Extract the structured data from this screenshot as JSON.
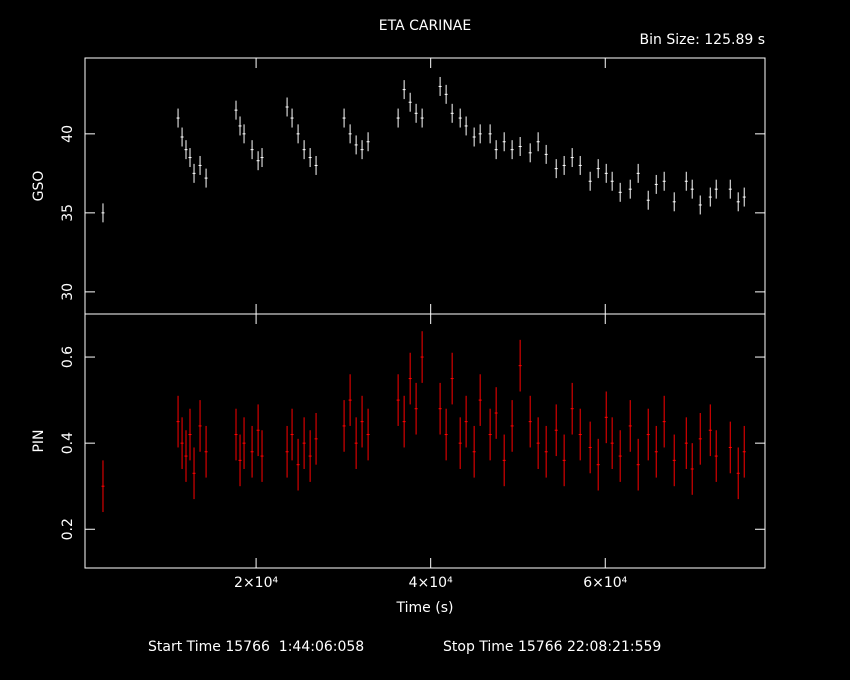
{
  "header": {
    "title": "ETA CARINAE",
    "bin_size": "Bin Size: 125.89 s"
  },
  "chart_data": [
    {
      "type": "errorbar",
      "ylabel": "GSO",
      "x": [
        2460,
        11060,
        11520,
        11970,
        12430,
        12890,
        13580,
        14270,
        17700,
        18160,
        18620,
        19540,
        20230,
        20680,
        23550,
        24120,
        24810,
        25500,
        26190,
        26870,
        30080,
        30770,
        31460,
        32140,
        32830,
        36270,
        36960,
        37650,
        38330,
        39020,
        41080,
        41770,
        42460,
        43380,
        44060,
        44980,
        45670,
        46810,
        47500,
        48420,
        49330,
        50250,
        51400,
        52310,
        53230,
        54380,
        55290,
        56210,
        57130,
        58270,
        59190,
        60110,
        60790,
        61710,
        62860,
        63770,
        64920,
        65840,
        66750,
        67900,
        69280,
        69960,
        70880,
        72030,
        72710,
        74320,
        75230,
        75920
      ],
      "series": [
        {
          "color": "#ffffff",
          "values": [
            35.0,
            41.0,
            39.8,
            39.0,
            38.5,
            37.5,
            38.0,
            37.2,
            41.5,
            40.5,
            40.0,
            39.0,
            38.3,
            38.5,
            41.7,
            41.0,
            40.0,
            39.0,
            38.5,
            38.0,
            41.0,
            40.0,
            39.3,
            39.0,
            39.5,
            41.0,
            42.8,
            42.0,
            41.3,
            41.0,
            43.0,
            42.5,
            41.3,
            41.0,
            40.5,
            39.8,
            40.0,
            40.0,
            39.0,
            39.5,
            39.0,
            39.2,
            38.8,
            39.5,
            38.7,
            37.8,
            38.0,
            38.5,
            38.0,
            37.0,
            37.8,
            37.5,
            37.0,
            36.3,
            36.5,
            37.5,
            35.8,
            36.8,
            37.0,
            35.7,
            37.0,
            36.5,
            35.5,
            36.0,
            36.5,
            36.5,
            35.7,
            36.0
          ]
        }
      ],
      "yerr": 0.6,
      "xlim": [
        400,
        78300
      ],
      "ylim": [
        28.6,
        44.8
      ],
      "yticks": [
        30,
        35,
        40
      ]
    },
    {
      "type": "errorbar",
      "ylabel": "PIN",
      "xlabel": "Time (s)",
      "x": [
        2460,
        11060,
        11520,
        11970,
        12430,
        12890,
        13580,
        14270,
        17700,
        18160,
        18620,
        19540,
        20230,
        20680,
        23550,
        24120,
        24810,
        25500,
        26190,
        26870,
        30080,
        30770,
        31460,
        32140,
        32830,
        36270,
        36960,
        37650,
        38330,
        39020,
        41080,
        41770,
        42460,
        43380,
        44060,
        44980,
        45670,
        46810,
        47500,
        48420,
        49330,
        50250,
        51400,
        52310,
        53230,
        54380,
        55290,
        56210,
        57130,
        58270,
        59190,
        60110,
        60790,
        61710,
        62860,
        63770,
        64920,
        65840,
        66750,
        67900,
        69280,
        69960,
        70880,
        72030,
        72710,
        74320,
        75230,
        75920
      ],
      "series": [
        {
          "color": "#ff0000",
          "values": [
            0.3,
            0.45,
            0.4,
            0.37,
            0.42,
            0.33,
            0.44,
            0.38,
            0.42,
            0.36,
            0.4,
            0.38,
            0.43,
            0.37,
            0.38,
            0.42,
            0.35,
            0.4,
            0.37,
            0.41,
            0.44,
            0.5,
            0.4,
            0.45,
            0.42,
            0.5,
            0.45,
            0.55,
            0.48,
            0.6,
            0.48,
            0.42,
            0.55,
            0.4,
            0.45,
            0.38,
            0.5,
            0.42,
            0.47,
            0.36,
            0.44,
            0.58,
            0.45,
            0.4,
            0.38,
            0.43,
            0.36,
            0.48,
            0.42,
            0.39,
            0.35,
            0.46,
            0.4,
            0.37,
            0.44,
            0.35,
            0.42,
            0.38,
            0.45,
            0.36,
            0.4,
            0.34,
            0.41,
            0.43,
            0.37,
            0.39,
            0.33,
            0.38
          ]
        }
      ],
      "yerr": 0.06,
      "xlim": [
        400,
        78300
      ],
      "ylim": [
        0.11,
        0.7
      ],
      "yticks": [
        0.2,
        0.4,
        0.6
      ],
      "xticks": [
        {
          "value": 20000,
          "label": "2×10⁴"
        },
        {
          "value": 40000,
          "label": "4×10⁴"
        },
        {
          "value": 60000,
          "label": "6×10⁴"
        }
      ]
    }
  ],
  "footer": {
    "start": "Start Time 15766  1:44:06:058",
    "stop": "Stop Time 15766 22:08:21:559"
  }
}
